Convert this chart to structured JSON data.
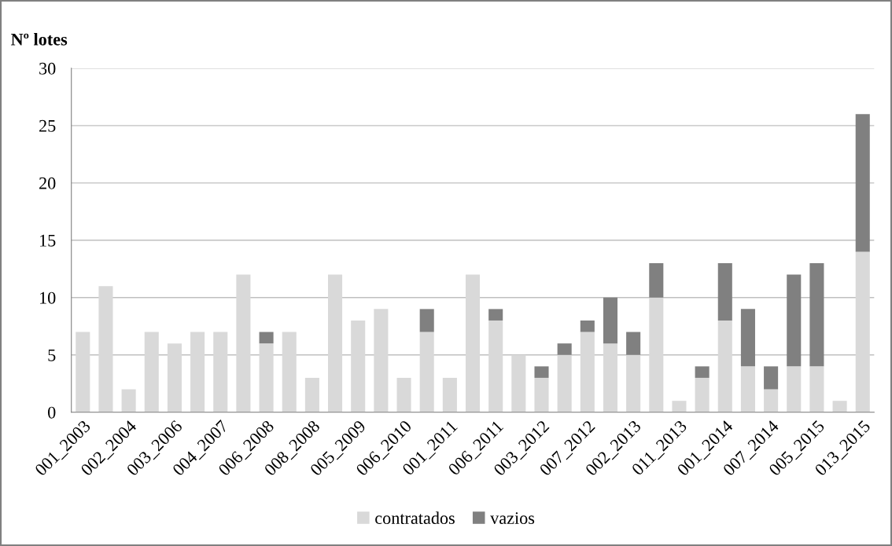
{
  "chart_data": {
    "type": "bar",
    "stacked": true,
    "ylabel": "Nº lotes",
    "categories": [
      "001_2003",
      null,
      "002_2004",
      null,
      "003_2006",
      null,
      "004_2007",
      null,
      "006_2008",
      null,
      "008_2008",
      null,
      "005_2009",
      null,
      "006_2010",
      null,
      "001_2011",
      null,
      "006_2011",
      null,
      "003_2012",
      null,
      "007_2012",
      null,
      "002_2013",
      null,
      "011_2013",
      null,
      "001_2014",
      null,
      "007_2014",
      null,
      "005_2015",
      null,
      "013_2015"
    ],
    "series": [
      {
        "name": "contratados",
        "color": "#d9d9d9",
        "values": [
          7,
          11,
          2,
          7,
          6,
          7,
          7,
          12,
          6,
          7,
          3,
          12,
          8,
          9,
          3,
          7,
          3,
          12,
          8,
          5,
          3,
          5,
          7,
          6,
          5,
          10,
          1,
          3,
          8,
          4,
          2,
          4,
          4,
          1,
          14
        ]
      },
      {
        "name": "vazios",
        "color": "#808080",
        "values": [
          0,
          0,
          0,
          0,
          0,
          0,
          0,
          0,
          1,
          0,
          0,
          0,
          0,
          0,
          0,
          2,
          0,
          0,
          1,
          0,
          1,
          1,
          1,
          4,
          2,
          3,
          0,
          1,
          5,
          5,
          2,
          8,
          9,
          0,
          12
        ]
      }
    ],
    "ylim": [
      0,
      30
    ],
    "yticks": [
      0,
      5,
      10,
      15,
      20,
      25,
      30
    ],
    "grid": "y",
    "legend": "bottom"
  }
}
